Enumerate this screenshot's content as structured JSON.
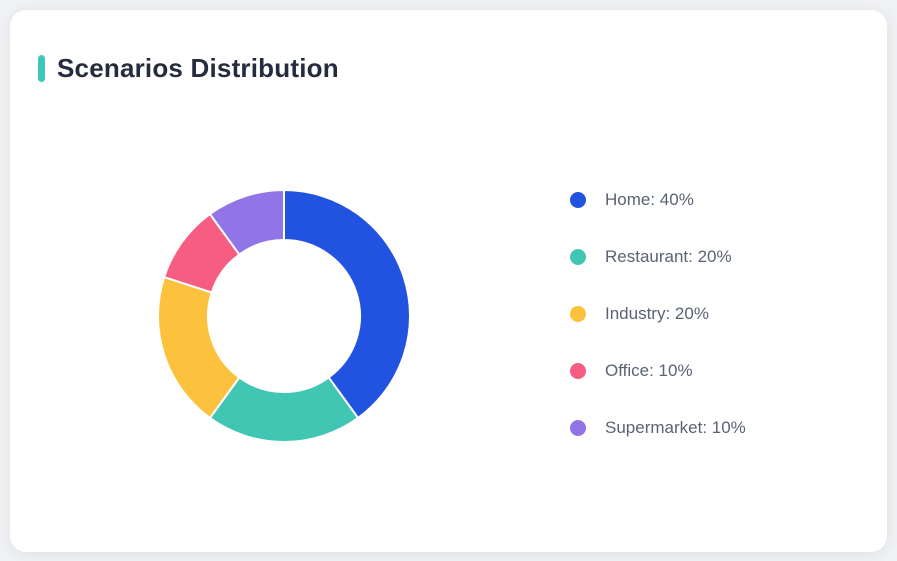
{
  "card": {
    "title": "Scenarios Distribution",
    "accent_color": "#3ec8ba"
  },
  "chart_data": {
    "type": "pie",
    "subtype": "donut",
    "title": "Scenarios Distribution",
    "categories": [
      "Home",
      "Restaurant",
      "Industry",
      "Office",
      "Supermarket"
    ],
    "values": [
      40,
      20,
      20,
      10,
      10
    ],
    "unit": "%",
    "colors": [
      "#2153e0",
      "#41c6b4",
      "#fcc23d",
      "#f75c82",
      "#9175e7"
    ],
    "start_angle": "12-oclock",
    "direction": "clockwise",
    "inner_radius_ratio": 0.6,
    "separator_color": "#ffffff",
    "legend_position": "right",
    "legend": [
      {
        "label": "Home: 40%",
        "color": "#2153e0"
      },
      {
        "label": "Restaurant: 20%",
        "color": "#41c6b4"
      },
      {
        "label": "Industry: 20%",
        "color": "#fcc23d"
      },
      {
        "label": "Office: 10%",
        "color": "#f75c82"
      },
      {
        "label": "Supermarket: 10%",
        "color": "#9175e7"
      }
    ]
  }
}
